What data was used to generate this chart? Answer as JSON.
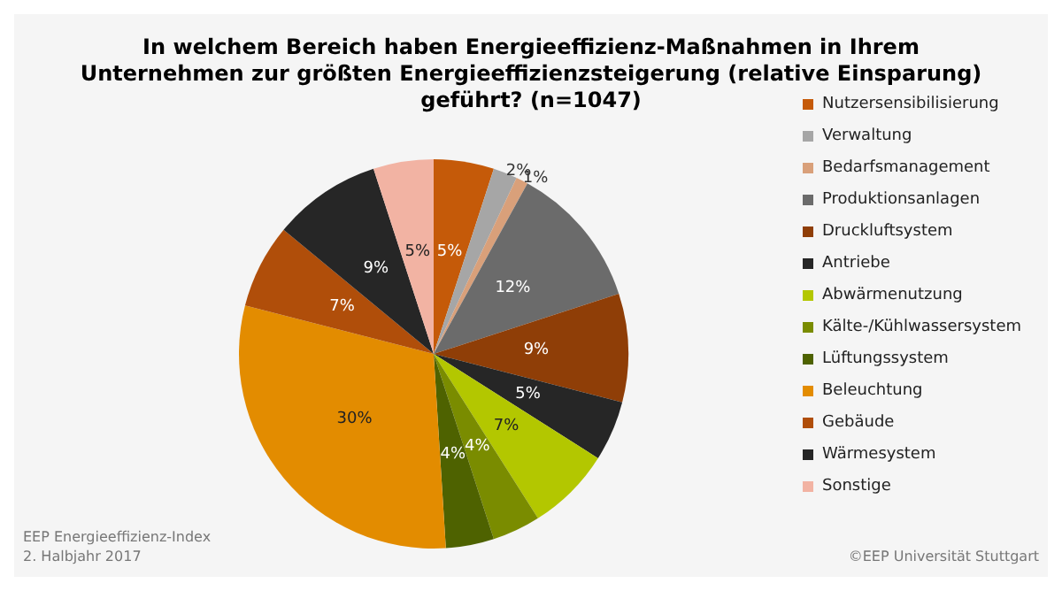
{
  "chart_data": {
    "type": "pie",
    "title": "In welchem Bereich haben Energieeffizienz-Maßnahmen in Ihrem\nUnternehmen zur größten Energieeffizienzsteigerung (relative Einsparung)\ngeführt? (n=1047)",
    "categories": [
      "Nutzersensibilisierung",
      "Verwaltung",
      "Bedarfsmanagement",
      "Produktionsanlagen",
      "Druckluftsystem",
      "Antriebe",
      "Abwärmenutzung",
      "Kälte-/Kühlwassersystem",
      "Lüftungssystem",
      "Beleuchtung",
      "Gebäude",
      "Wärmesystem",
      "Sonstige"
    ],
    "values": [
      5,
      2,
      1,
      12,
      9,
      5,
      7,
      4,
      4,
      30,
      7,
      9,
      5
    ],
    "colors": [
      "#c55a09",
      "#a6a6a6",
      "#d9a07a",
      "#6b6b6b",
      "#8f3e07",
      "#262626",
      "#b3c700",
      "#7a8c00",
      "#4e6200",
      "#e38c00",
      "#b04e0a",
      "#262626",
      "#f2b3a3"
    ],
    "value_labels": [
      "5%",
      "2%",
      "1%",
      "12%",
      "9%",
      "5%",
      "7%",
      "4%",
      "4%",
      "30%",
      "7%",
      "9%",
      "5%"
    ],
    "legend": "right",
    "annotations": [
      "EEP Energieeffizienz-Index\n2. Halbjahr 2017",
      "©EEP Universität Stuttgart"
    ]
  }
}
